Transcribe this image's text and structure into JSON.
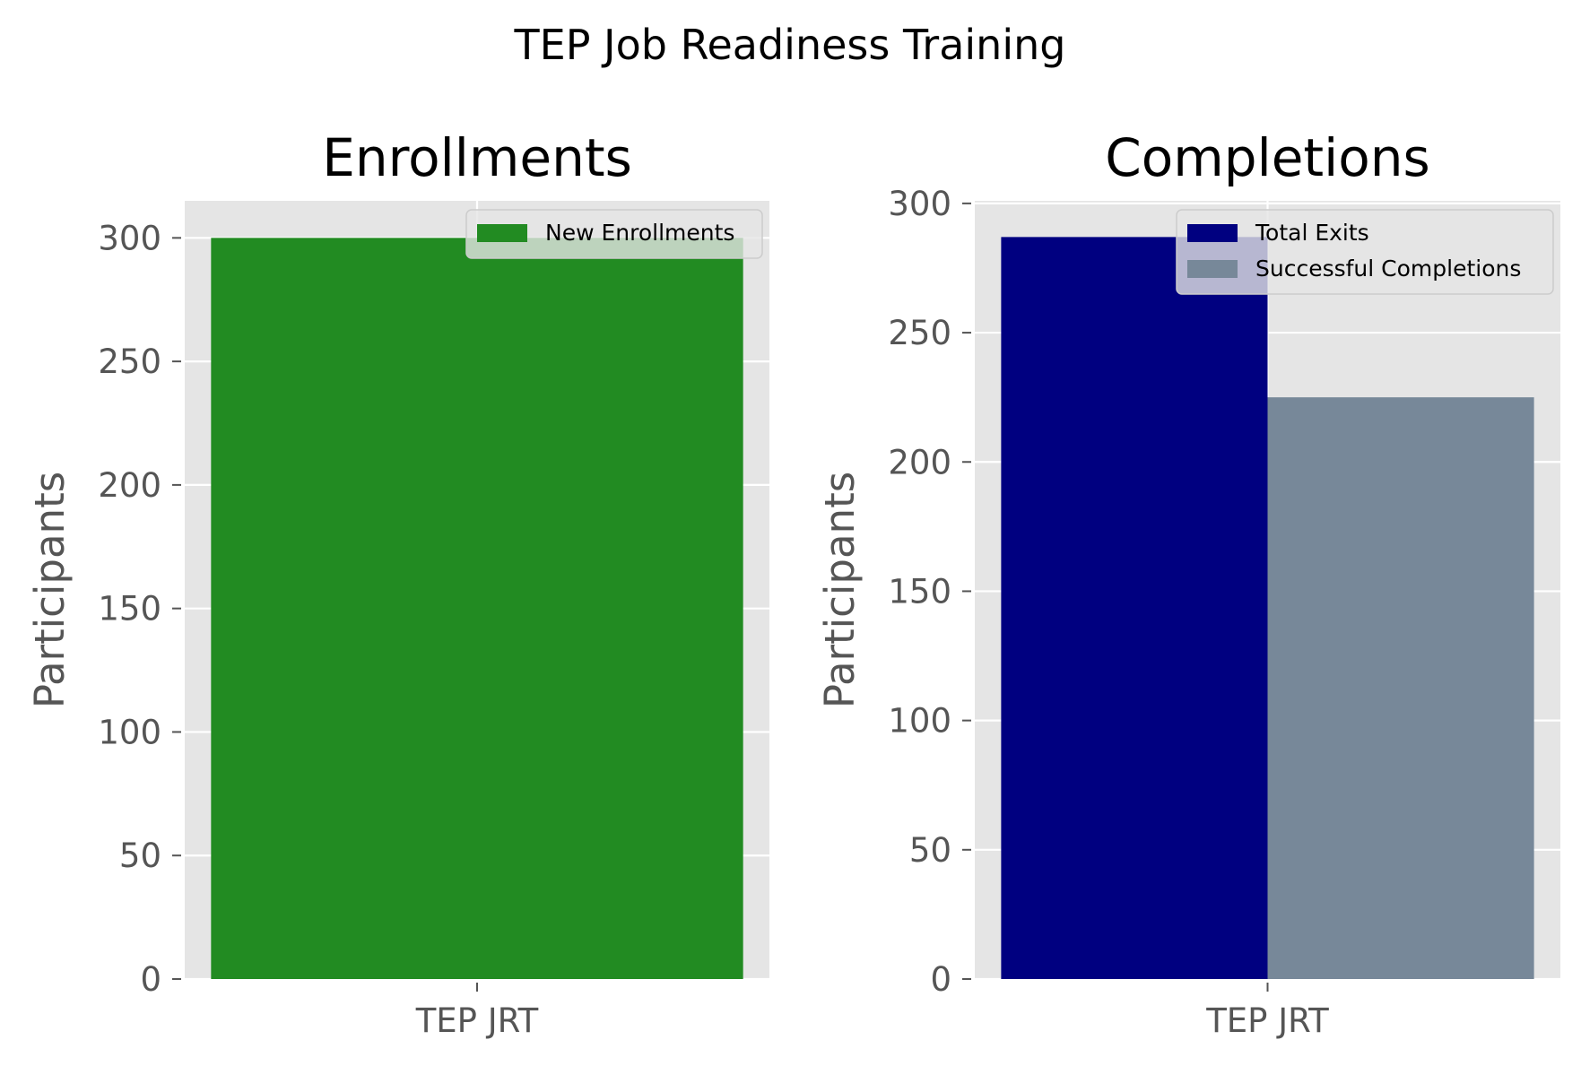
{
  "figure_title": "TEP Job Readiness Training",
  "chart_data": [
    {
      "type": "bar",
      "title": "Enrollments",
      "xlabel": "",
      "ylabel": "Participants",
      "categories": [
        "TEP JRT"
      ],
      "series": [
        {
          "name": "New Enrollments",
          "values": [
            300
          ],
          "color": "#228b22"
        }
      ],
      "ylim": [
        0,
        315
      ],
      "yticks": [
        0,
        50,
        100,
        150,
        200,
        250,
        300
      ],
      "grid": true,
      "legend": "upper-right",
      "background": "#e5e5e5"
    },
    {
      "type": "bar",
      "title": "Completions",
      "xlabel": "",
      "ylabel": "Participants",
      "categories": [
        "TEP JRT"
      ],
      "series": [
        {
          "name": "Total Exits",
          "values": [
            287
          ],
          "color": "#000080"
        },
        {
          "name": "Successful Completions",
          "values": [
            225
          ],
          "color": "#778899"
        }
      ],
      "ylim": [
        0,
        301
      ],
      "yticks": [
        0,
        50,
        100,
        150,
        200,
        250,
        300
      ],
      "grid": true,
      "legend": "upper-right",
      "background": "#e5e5e5"
    }
  ]
}
